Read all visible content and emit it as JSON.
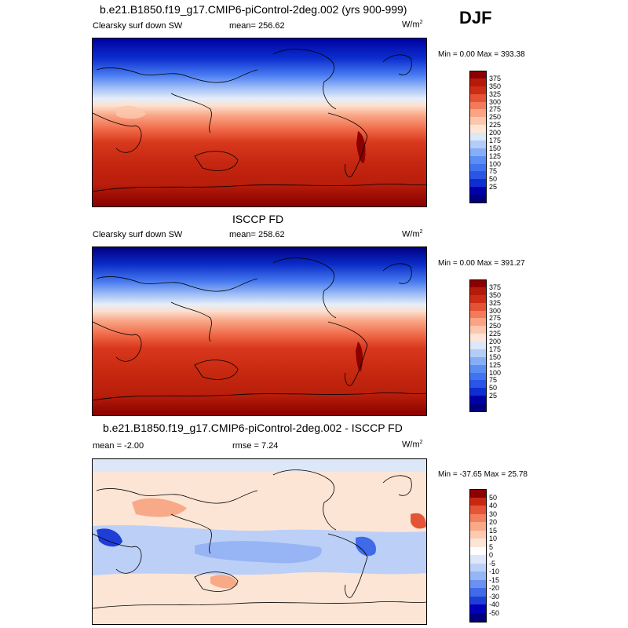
{
  "season": "DJF",
  "panels": [
    {
      "title": "b.e21.B1850.f19_g17.CMIP6-piControl-2deg.002 (yrs 900-999)",
      "left_label": "Clearsky surf down SW",
      "center_label": "mean= 256.62",
      "units": "W/m",
      "units_sup": "2",
      "minmax": "Min =   0.00 Max = 393.38",
      "palette": "abs",
      "bands": [
        "#00007f",
        "#0000a8",
        "#0f2ed2",
        "#2a55e6",
        "#3f73f0",
        "#5b8ef5",
        "#86aef8",
        "#b3cdf8",
        "#dbe8f7",
        "#ffe5d6",
        "#fcc8ad",
        "#f9a585",
        "#f37b5a",
        "#e45335",
        "#cd2d15",
        "#b41b0b",
        "#8c0000"
      ],
      "ticks": [
        "375",
        "350",
        "325",
        "300",
        "275",
        "250",
        "225",
        "200",
        "175",
        "150",
        "125",
        "100",
        "75",
        "50",
        "25"
      ]
    },
    {
      "title": "ISCCP FD",
      "left_label": "Clearsky surf down SW",
      "center_label": "mean= 258.62",
      "units": "W/m",
      "units_sup": "2",
      "minmax": "Min =   0.00 Max = 391.27",
      "palette": "abs",
      "bands": [
        "#00007f",
        "#0000a8",
        "#0f2ed2",
        "#2a55e6",
        "#3f73f0",
        "#5b8ef5",
        "#86aef8",
        "#b3cdf8",
        "#dbe8f7",
        "#ffe5d6",
        "#fcc8ad",
        "#f9a585",
        "#f37b5a",
        "#e45335",
        "#cd2d15",
        "#b41b0b",
        "#8c0000"
      ],
      "ticks": [
        "375",
        "350",
        "325",
        "300",
        "275",
        "250",
        "225",
        "200",
        "175",
        "150",
        "125",
        "100",
        "75",
        "50",
        "25"
      ]
    },
    {
      "title": "b.e21.B1850.f19_g17.CMIP6-piControl-2deg.002 - ISCCP FD",
      "left_label": "mean =   -2.00",
      "center_label": "rmse =   7.24",
      "units": "W/m",
      "units_sup": "2",
      "minmax": "Min = -37.65 Max =  25.78",
      "palette": "diff",
      "bands": [
        "#00007f",
        "#0000b8",
        "#1f3ed8",
        "#3f6ae8",
        "#6b91f0",
        "#97b4f5",
        "#bcd0f7",
        "#dce8f8",
        "#ffffff",
        "#fde5d5",
        "#fbcab0",
        "#f8a988",
        "#f37f5c",
        "#e45538",
        "#c82812",
        "#8c0000"
      ],
      "ticks": [
        "50",
        "40",
        "30",
        "20",
        "15",
        "10",
        "5",
        "0",
        "-5",
        "-10",
        "-15",
        "-20",
        "-30",
        "-40",
        "-50"
      ]
    }
  ]
}
